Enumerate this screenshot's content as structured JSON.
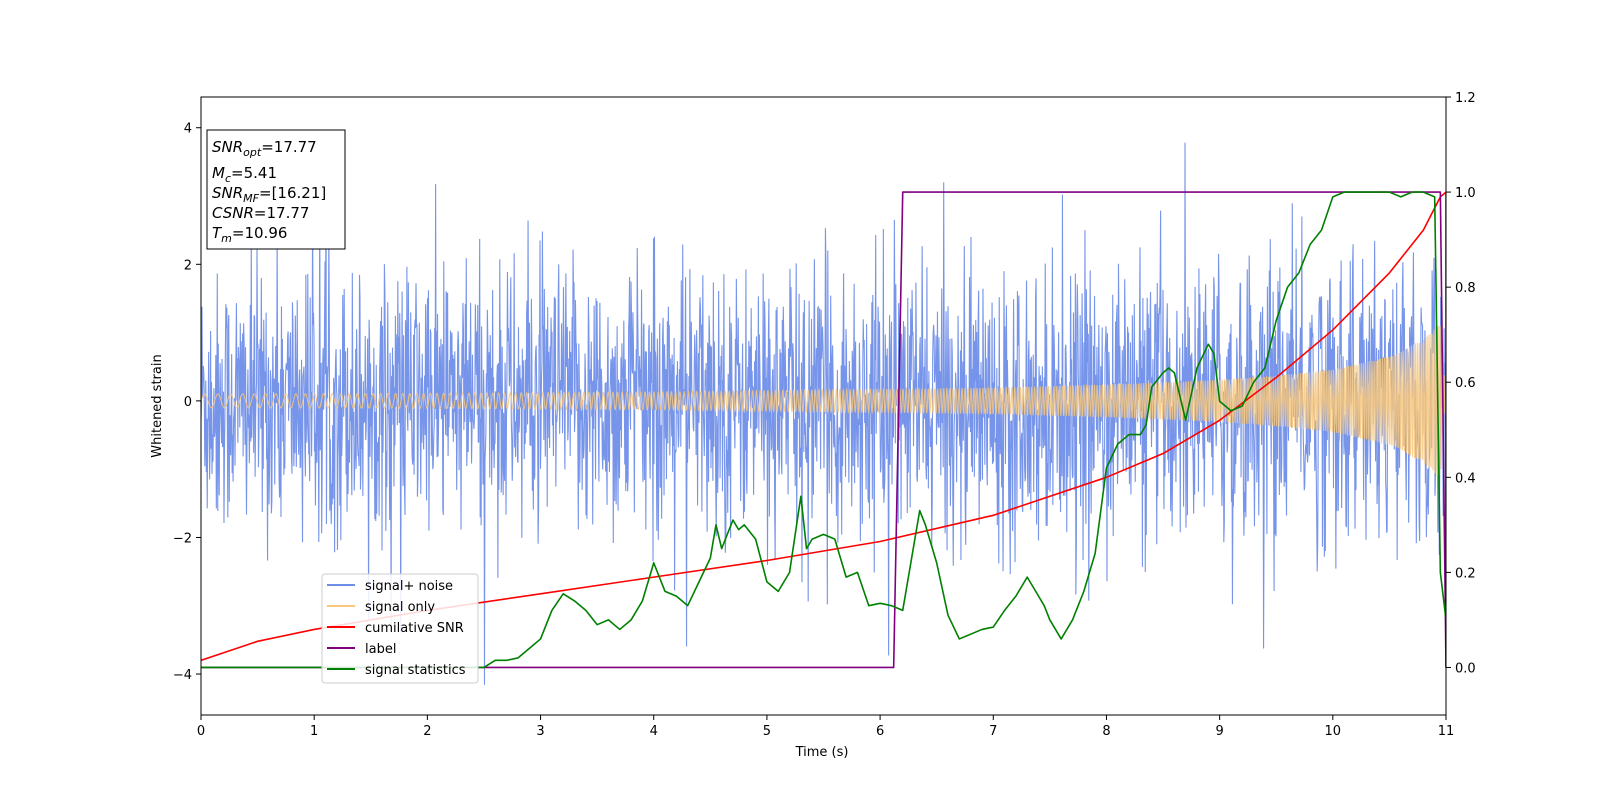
{
  "chart_data": {
    "type": "line",
    "xlabel": "Time (s)",
    "ylabel": "Whitened strain",
    "xlim": [
      0,
      11
    ],
    "ylim": [
      -4.6,
      4.45
    ],
    "y2lim": [
      -0.1,
      1.2
    ],
    "x_ticks": [
      0,
      1,
      2,
      3,
      4,
      5,
      6,
      7,
      8,
      9,
      10,
      11
    ],
    "y_ticks": [
      -4,
      -2,
      0,
      2,
      4
    ],
    "y2_ticks": [
      "0.0",
      "0.2",
      "0.4",
      "0.6",
      "0.8",
      "1.0",
      "1.2"
    ],
    "grid": false,
    "legend_placement": "lower-left",
    "stats_box": {
      "snr_opt": {
        "sym": "SNR",
        "sub": "opt",
        "value": "=17.77"
      },
      "mc": {
        "sym": "M",
        "sub": "c",
        "value": "=5.41"
      },
      "snr_mf": {
        "sym": "SNR",
        "sub": "MF",
        "value": "=[16.21]"
      },
      "csnr": {
        "sym": "CSNR",
        "value": "=17.77"
      },
      "tm": {
        "sym": "T",
        "sub": "m",
        "value": "=10.96"
      }
    },
    "series": [
      {
        "name": "signal+ noise",
        "color": "#6f8ee8",
        "axis": "left",
        "noise_sigma": 0.95,
        "peak_max": 4.0,
        "peak_min": -4.15
      },
      {
        "name": "signal only",
        "color": "#f7c77d",
        "axis": "left",
        "envelope_x": [
          0,
          2,
          4,
          6,
          7,
          8,
          8.5,
          9,
          9.5,
          10,
          10.5,
          10.8,
          10.95,
          11
        ],
        "envelope_y": [
          0.1,
          0.11,
          0.13,
          0.17,
          0.19,
          0.24,
          0.27,
          0.31,
          0.37,
          0.46,
          0.65,
          0.9,
          1.15,
          0
        ]
      },
      {
        "name": "cumilative SNR",
        "color": "#ff0000",
        "axis": "right",
        "x": [
          0,
          0.5,
          1,
          2,
          3,
          4,
          5,
          6,
          7,
          8,
          8.5,
          9,
          9.5,
          10,
          10.5,
          10.8,
          10.95,
          11,
          11
        ],
        "y": [
          0.015,
          0.055,
          0.08,
          0.12,
          0.155,
          0.19,
          0.225,
          0.265,
          0.32,
          0.4,
          0.45,
          0.52,
          0.61,
          0.71,
          0.83,
          0.92,
          0.99,
          1.0,
          0.0
        ]
      },
      {
        "name": "label",
        "color": "#800080",
        "axis": "right",
        "x": [
          0,
          6.12,
          6.2,
          10.95,
          11
        ],
        "y": [
          0.0,
          0.0,
          1.0,
          1.0,
          0.0
        ]
      },
      {
        "name": "signal statistics",
        "color": "#008000",
        "axis": "right",
        "x": [
          0,
          0.5,
          1,
          1.5,
          2,
          2.5,
          2.6,
          2.7,
          2.8,
          2.9,
          3.0,
          3.1,
          3.2,
          3.3,
          3.4,
          3.5,
          3.6,
          3.7,
          3.8,
          3.9,
          4.0,
          4.1,
          4.2,
          4.3,
          4.4,
          4.5,
          4.55,
          4.6,
          4.7,
          4.75,
          4.8,
          4.9,
          5.0,
          5.1,
          5.2,
          5.3,
          5.35,
          5.4,
          5.5,
          5.6,
          5.65,
          5.7,
          5.8,
          5.9,
          6.0,
          6.1,
          6.2,
          6.3,
          6.35,
          6.4,
          6.45,
          6.5,
          6.6,
          6.7,
          6.8,
          6.9,
          7.0,
          7.1,
          7.2,
          7.3,
          7.4,
          7.45,
          7.5,
          7.6,
          7.7,
          7.8,
          7.9,
          8.0,
          8.1,
          8.15,
          8.2,
          8.3,
          8.35,
          8.4,
          8.5,
          8.55,
          8.6,
          8.7,
          8.8,
          8.9,
          8.95,
          9.0,
          9.1,
          9.2,
          9.3,
          9.4,
          9.5,
          9.6,
          9.7,
          9.8,
          9.9,
          10.0,
          10.1,
          10.2,
          10.3,
          10.4,
          10.5,
          10.6,
          10.7,
          10.8,
          10.9,
          10.95,
          11.0
        ],
        "y": [
          0.0,
          0.0,
          0.0,
          0.0,
          0.0,
          0.0,
          0.015,
          0.015,
          0.02,
          0.04,
          0.06,
          0.12,
          0.155,
          0.14,
          0.12,
          0.09,
          0.1,
          0.08,
          0.1,
          0.14,
          0.22,
          0.16,
          0.15,
          0.13,
          0.18,
          0.23,
          0.3,
          0.25,
          0.31,
          0.29,
          0.3,
          0.27,
          0.18,
          0.16,
          0.2,
          0.36,
          0.25,
          0.27,
          0.28,
          0.27,
          0.23,
          0.19,
          0.2,
          0.13,
          0.135,
          0.13,
          0.12,
          0.26,
          0.33,
          0.3,
          0.26,
          0.22,
          0.11,
          0.06,
          0.07,
          0.08,
          0.085,
          0.12,
          0.15,
          0.19,
          0.15,
          0.13,
          0.1,
          0.06,
          0.1,
          0.16,
          0.24,
          0.42,
          0.47,
          0.48,
          0.49,
          0.49,
          0.51,
          0.59,
          0.62,
          0.63,
          0.62,
          0.52,
          0.63,
          0.68,
          0.66,
          0.56,
          0.54,
          0.55,
          0.6,
          0.63,
          0.73,
          0.8,
          0.83,
          0.89,
          0.92,
          0.99,
          1.0,
          1.0,
          1.0,
          1.0,
          1.0,
          0.99,
          1.0,
          1.0,
          0.99,
          0.2,
          0.1
        ]
      }
    ]
  }
}
